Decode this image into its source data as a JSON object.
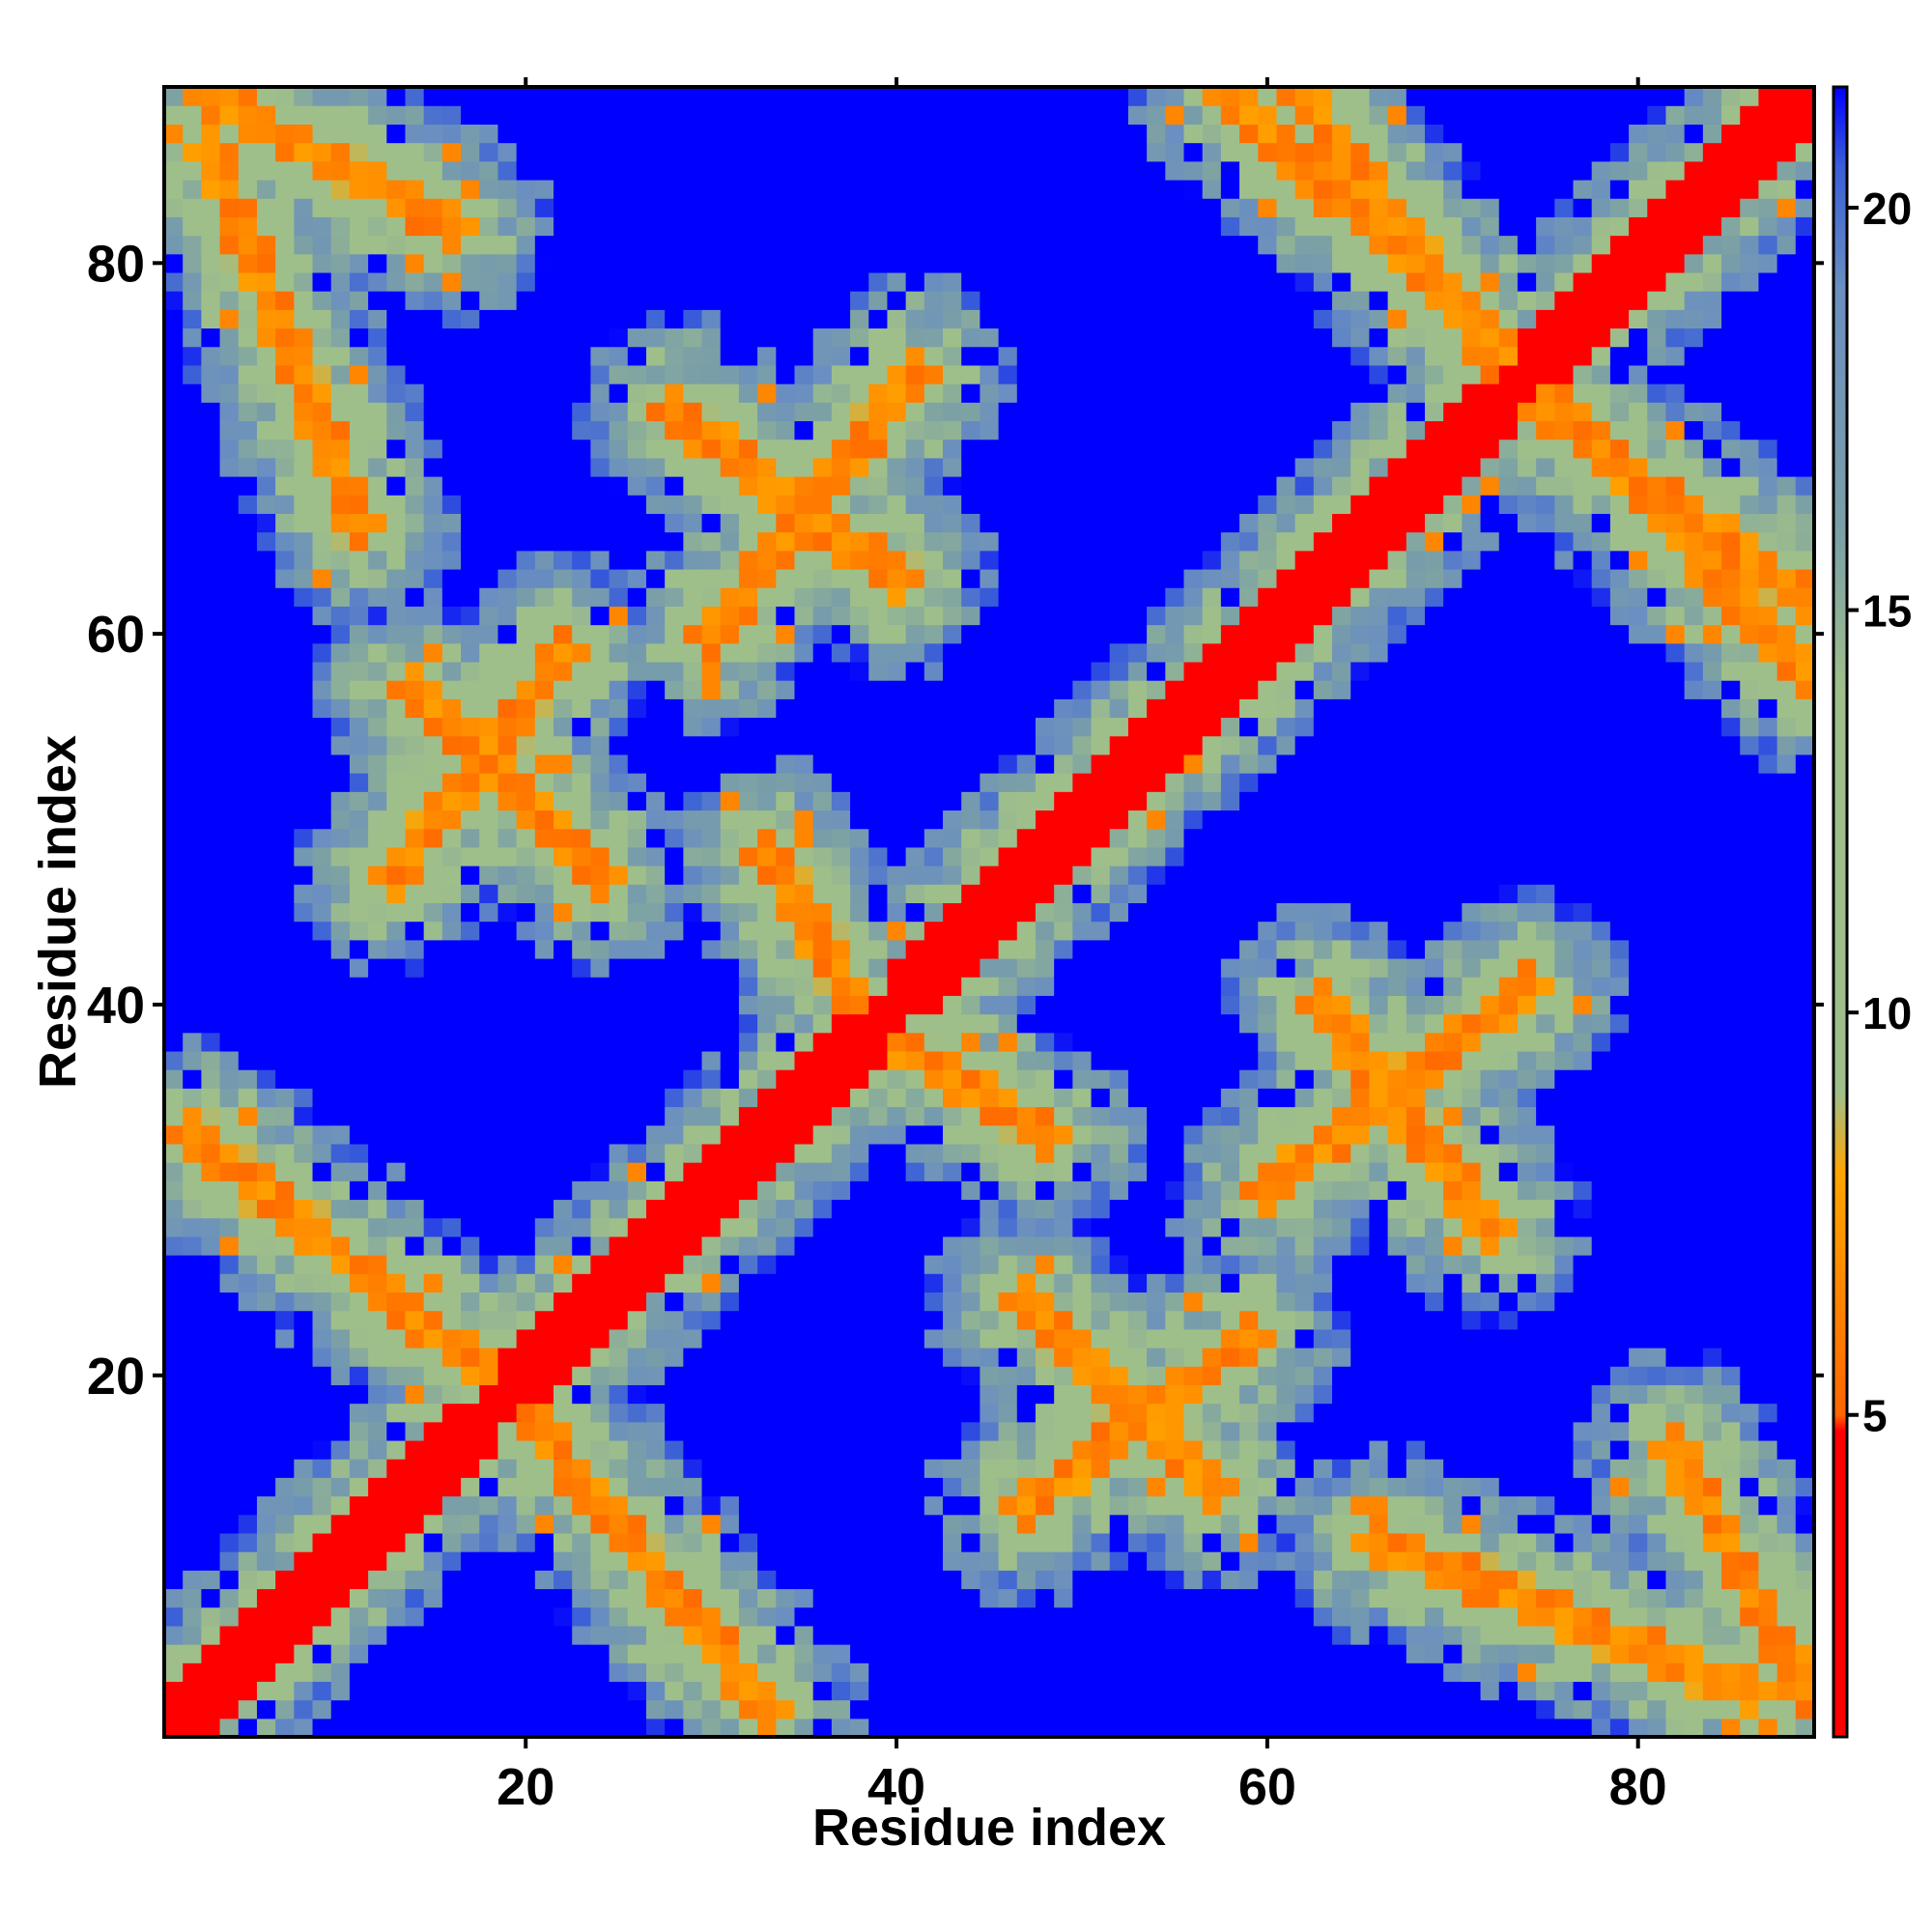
{
  "chart_data": {
    "type": "heatmap",
    "title": "",
    "xlabel": "Residue index",
    "ylabel": "Residue index",
    "n_residues": 89,
    "xlim": [
      1,
      89
    ],
    "ylim": [
      1,
      89
    ],
    "x_ticks": [
      20,
      40,
      60,
      80
    ],
    "y_ticks": [
      20,
      40,
      60,
      80
    ],
    "x_tick_labels": [
      "20",
      "40",
      "60",
      "80"
    ],
    "y_tick_labels": [
      "20",
      "40",
      "60",
      "80"
    ],
    "grid": false,
    "colorbar": {
      "placement": "right",
      "range": [
        1,
        21.5
      ],
      "ticks": [
        5,
        10,
        15,
        20
      ],
      "tick_labels": [
        "5",
        "10",
        "15",
        "20"
      ],
      "stops": [
        {
          "value": 1,
          "color": "#ff0000"
        },
        {
          "value": 4.8,
          "color": "#ff0000"
        },
        {
          "value": 5.0,
          "color": "#ff6600"
        },
        {
          "value": 8.0,
          "color": "#ffa500"
        },
        {
          "value": 9.0,
          "color": "#9fbf8a"
        },
        {
          "value": 14.0,
          "color": "#9fbf8a"
        },
        {
          "value": 16.0,
          "color": "#7a9fa7"
        },
        {
          "value": 19.0,
          "color": "#6a8fc0"
        },
        {
          "value": 20.5,
          "color": "#3a5fd8"
        },
        {
          "value": 21.5,
          "color": "#0000ff"
        }
      ]
    },
    "model": {
      "description_values": "Pairwise residue distance map: diagonal band ~2, parallel/antiparallel contact bands ~6, intermediate shells 10-18, far pairs saturate at 21.5",
      "diagonal_halfwidth": 1.6,
      "contact_bands": [
        {
          "a": [
            2,
            18
          ],
          "b": [
            20,
            33
          ],
          "orientation": "anti"
        },
        {
          "a": [
            13,
            22
          ],
          "b": [
            47,
            59
          ],
          "orientation": "parallel"
        },
        {
          "a": [
            3,
            11
          ],
          "b": [
            66,
            86
          ],
          "orientation": "anti"
        },
        {
          "a": [
            30,
            41
          ],
          "b": [
            60,
            74
          ],
          "orientation": "parallel"
        },
        {
          "a": [
            40,
            48
          ],
          "b": [
            33,
            38
          ],
          "orientation": "anti"
        },
        {
          "a": [
            47,
            57
          ],
          "b": [
            14,
            24
          ],
          "orientation": "anti"
        },
        {
          "a": [
            63,
            72
          ],
          "b": [
            28,
            40
          ],
          "orientation": "anti"
        },
        {
          "a": [
            62,
            72
          ],
          "b": [
            75,
            89
          ],
          "orientation": "anti"
        },
        {
          "a": [
            76,
            89
          ],
          "b": [
            58,
            72
          ],
          "orientation": "anti"
        },
        {
          "a": [
            82,
            89
          ],
          "b": [
            3,
            16
          ],
          "orientation": "anti"
        }
      ],
      "far_value": 21.5,
      "near_value": 2,
      "band_value": 6.5
    }
  }
}
